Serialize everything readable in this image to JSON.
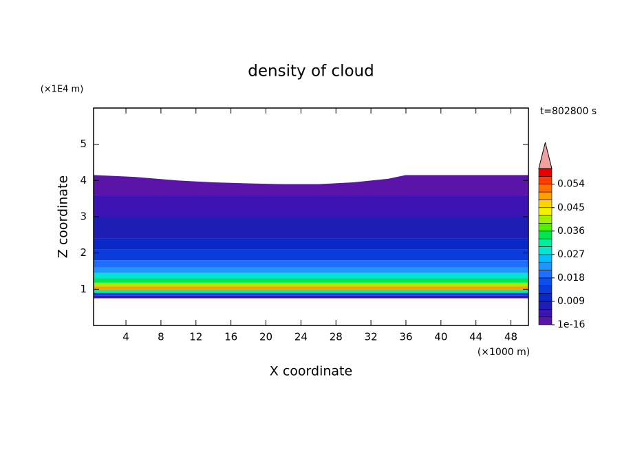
{
  "chart_data": {
    "type": "contour",
    "title": "density of cloud",
    "x_label": "X coordinate",
    "y_label": "Z coordinate",
    "x_unit": "(×1000 m)",
    "y_unit": "(×1E4 m)",
    "time_label": "t=802800 s",
    "xlim": [
      0.3,
      50
    ],
    "xticks": [
      4,
      8,
      12,
      16,
      20,
      24,
      28,
      32,
      36,
      40,
      44,
      48
    ],
    "ylim": [
      0,
      6
    ],
    "yticks": [
      1,
      2,
      3,
      4,
      5
    ],
    "profile": {
      "z_edges": [
        0.75,
        0.82,
        0.9,
        0.98,
        1.08,
        1.18,
        1.3,
        1.45,
        1.6,
        1.8,
        2.1,
        2.4,
        3.0,
        3.6,
        4.15
      ],
      "values": [
        0.003,
        0.012,
        0.03,
        0.05,
        0.04,
        0.033,
        0.027,
        0.021,
        0.018,
        0.014,
        0.011,
        0.007,
        0.004,
        0.002
      ]
    },
    "cloud_top": {
      "x": [
        0.3,
        5,
        10,
        14,
        18,
        22,
        26,
        30,
        34,
        36,
        40,
        50
      ],
      "z": [
        4.15,
        4.1,
        4.0,
        3.95,
        3.92,
        3.9,
        3.9,
        3.95,
        4.05,
        4.15,
        4.15,
        4.15
      ]
    },
    "colorbar": {
      "levels": [
        1e-16,
        0.003,
        0.006,
        0.009,
        0.012,
        0.015,
        0.018,
        0.021,
        0.024,
        0.027,
        0.03,
        0.033,
        0.036,
        0.039,
        0.042,
        0.045,
        0.048,
        0.051,
        0.054,
        0.057,
        0.06
      ],
      "colors": [
        "#5a14a8",
        "#3c14b4",
        "#1e1eb4",
        "#0a28c8",
        "#0a3cdc",
        "#0a50f0",
        "#1e6eff",
        "#1e96ff",
        "#00beff",
        "#00e6d2",
        "#00f0a0",
        "#00e650",
        "#50f000",
        "#a0f000",
        "#f0f000",
        "#ffd200",
        "#ffa000",
        "#ff6e00",
        "#ff3c00",
        "#e60000"
      ],
      "extend_color": "#f0a0a0",
      "ticks": [
        1e-16,
        0.009,
        0.018,
        0.027,
        0.036,
        0.045,
        0.054
      ]
    }
  }
}
